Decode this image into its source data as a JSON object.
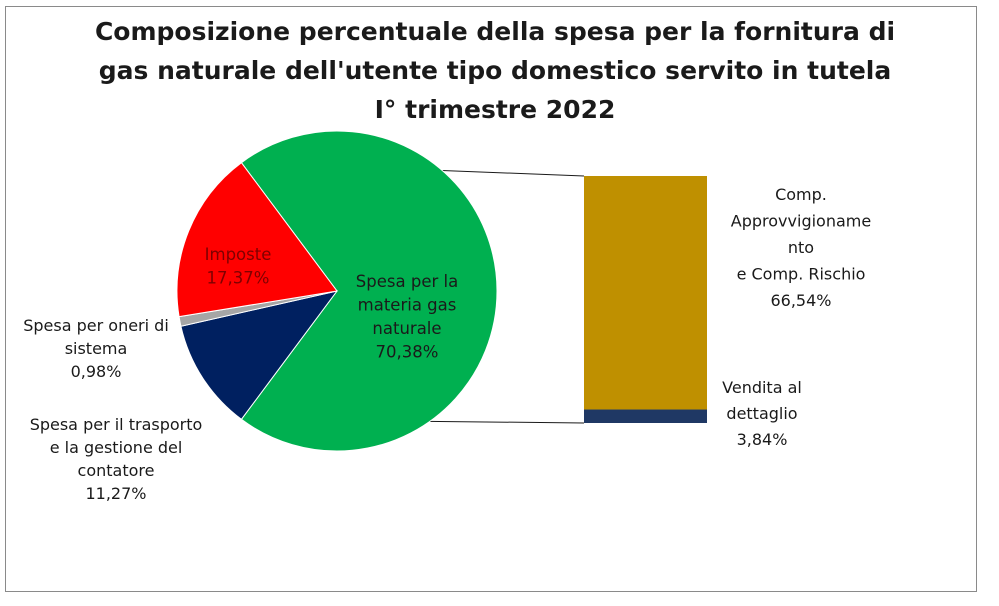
{
  "chart_data": {
    "type": "pie",
    "title": [
      "Composizione percentuale della spesa per la fornitura di",
      "gas naturale dell'utente tipo domestico servito in tutela",
      "I° trimestre 2022"
    ],
    "pie": {
      "slices": [
        {
          "label_lines": [
            "Spesa per la",
            "materia gas",
            "naturale"
          ],
          "value": 70.38,
          "value_text": "70,38%",
          "color": "#00b050",
          "label_color": "#1a1a1a"
        },
        {
          "label_lines": [
            "Spesa per il trasporto",
            "e la gestione del",
            "contatore"
          ],
          "value": 11.27,
          "value_text": "11,27%",
          "color": "#002060",
          "label_color": "#1a1a1a"
        },
        {
          "label_lines": [
            "Spesa per oneri di",
            "sistema"
          ],
          "value": 0.98,
          "value_text": "0,98%",
          "color": "#a6a6a6",
          "label_color": "#1a1a1a"
        },
        {
          "label_lines": [
            "Imposte"
          ],
          "value": 17.37,
          "value_text": "17,37%",
          "color": "#ff0000",
          "label_color": "#7f0000"
        }
      ]
    },
    "bar": {
      "segments": [
        {
          "label_lines": [
            "Comp.",
            "Approvvigioname",
            "nto",
            "e  Comp. Rischio"
          ],
          "value": 66.54,
          "value_text": "66,54%",
          "color": "#bf9000"
        },
        {
          "label_lines": [
            "Vendita al",
            "dettaglio"
          ],
          "value": 3.84,
          "value_text": "3,84%",
          "color": "#1f3864"
        }
      ]
    }
  }
}
